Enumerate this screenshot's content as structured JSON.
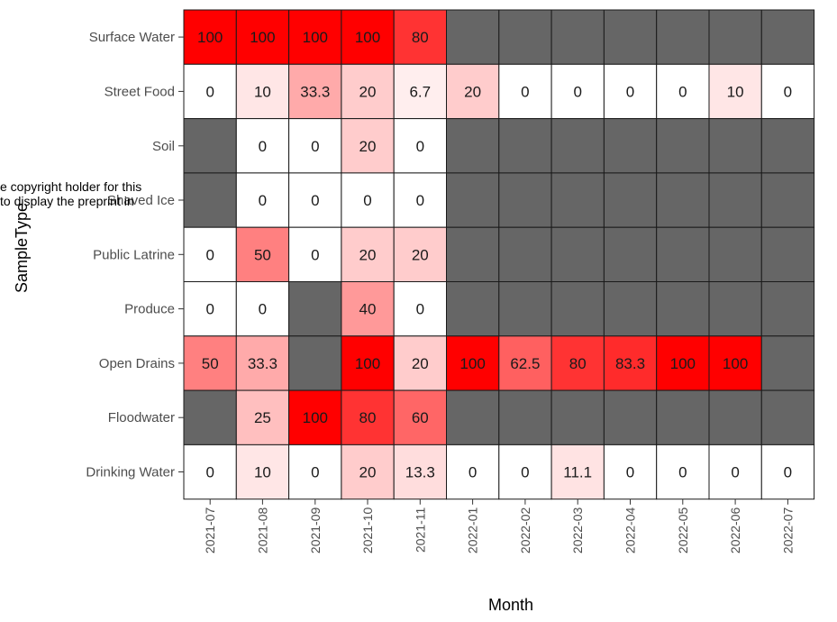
{
  "chart_data": {
    "type": "heatmap",
    "xlabel": "Month",
    "ylabel": "SampleType",
    "x_categories": [
      "2021-07",
      "2021-08",
      "2021-09",
      "2021-10",
      "2021-11",
      "2022-01",
      "2022-02",
      "2022-03",
      "2022-04",
      "2022-05",
      "2022-06",
      "2022-07"
    ],
    "y_categories": [
      "Surface Water",
      "Street Food",
      "Soil",
      "Shaved Ice",
      "Public Latrine",
      "Produce",
      "Open Drains",
      "Floodwater",
      "Drinking Water"
    ],
    "values": [
      [
        100,
        100,
        100,
        100,
        80,
        null,
        null,
        null,
        null,
        null,
        null,
        null
      ],
      [
        0,
        10,
        33.3,
        20,
        6.7,
        20,
        0,
        0,
        0,
        0,
        10,
        0
      ],
      [
        null,
        0,
        0,
        20,
        0,
        null,
        null,
        null,
        null,
        null,
        null,
        null
      ],
      [
        null,
        0,
        0,
        0,
        0,
        null,
        null,
        null,
        null,
        null,
        null,
        null
      ],
      [
        0,
        50,
        0,
        20,
        20,
        null,
        null,
        null,
        null,
        null,
        null,
        null
      ],
      [
        0,
        0,
        null,
        40,
        0,
        null,
        null,
        null,
        null,
        null,
        null,
        null
      ],
      [
        50,
        33.3,
        null,
        100,
        20,
        100,
        62.5,
        80,
        83.3,
        100,
        100,
        null
      ],
      [
        null,
        25,
        100,
        80,
        60,
        null,
        null,
        null,
        null,
        null,
        null,
        null
      ],
      [
        0,
        10,
        0,
        20,
        13.3,
        0,
        0,
        11.1,
        0,
        0,
        0,
        0
      ]
    ],
    "color_scale": {
      "low": "#ffffff",
      "high": "#ff0000",
      "missing": "#666666",
      "domain": [
        0,
        100
      ]
    },
    "grid": false,
    "legend": "none"
  },
  "overlay_text": [
    "e copyright holder for this",
    " to display the preprint in"
  ]
}
